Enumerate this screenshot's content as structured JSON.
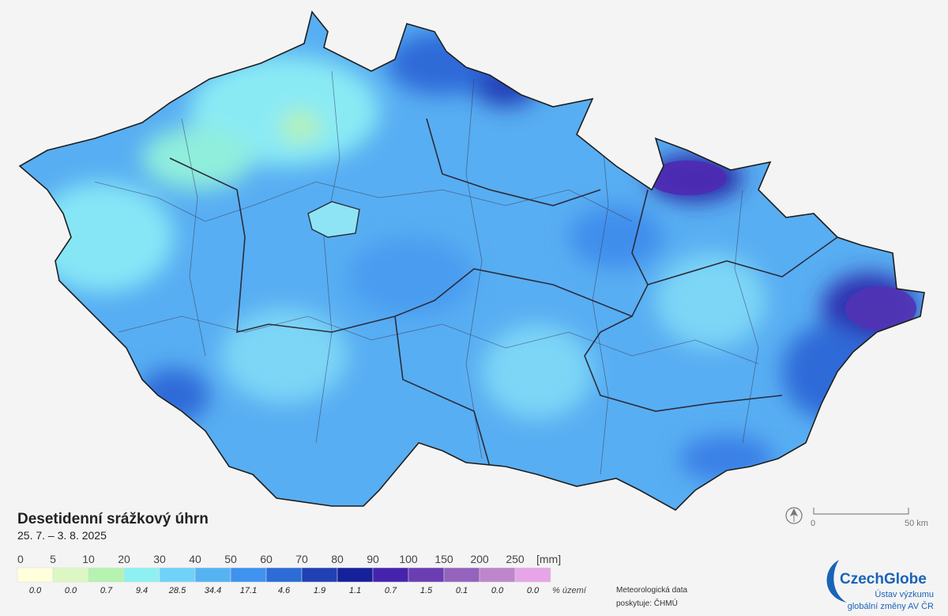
{
  "title": "Desetidenní srážkový úhrn",
  "period": "25. 7. – 3. 8. 2025",
  "legend": {
    "thresholds": [
      0,
      5,
      10,
      20,
      30,
      40,
      50,
      60,
      70,
      80,
      90,
      100,
      150,
      200,
      250
    ],
    "unit": "[mm]",
    "colors": [
      "#ffffdc",
      "#dcf7c4",
      "#b6f2b0",
      "#8ff0f2",
      "#6fd2f6",
      "#55b3f2",
      "#3f92ee",
      "#2d6bd6",
      "#1f41b4",
      "#16209a",
      "#4523ac",
      "#6a3db2",
      "#9463bd",
      "#bd86cc",
      "#e6a5e6"
    ],
    "shares": [
      "0.0",
      "0.0",
      "0.7",
      "9.4",
      "28.5",
      "34.4",
      "17.1",
      "4.6",
      "1.9",
      "1.1",
      "0.7",
      "1.5",
      "0.1",
      "0.0",
      "0.0"
    ],
    "shares_label": "% území"
  },
  "source": [
    "Meteorologická data",
    "poskytuje: ČHMÚ"
  ],
  "scale": {
    "start": "0",
    "end": "50 km"
  },
  "logo": {
    "name": "CzechGlobe",
    "subtitle": [
      "Ústav výzkumu",
      "globální změny AV ČR"
    ]
  }
}
